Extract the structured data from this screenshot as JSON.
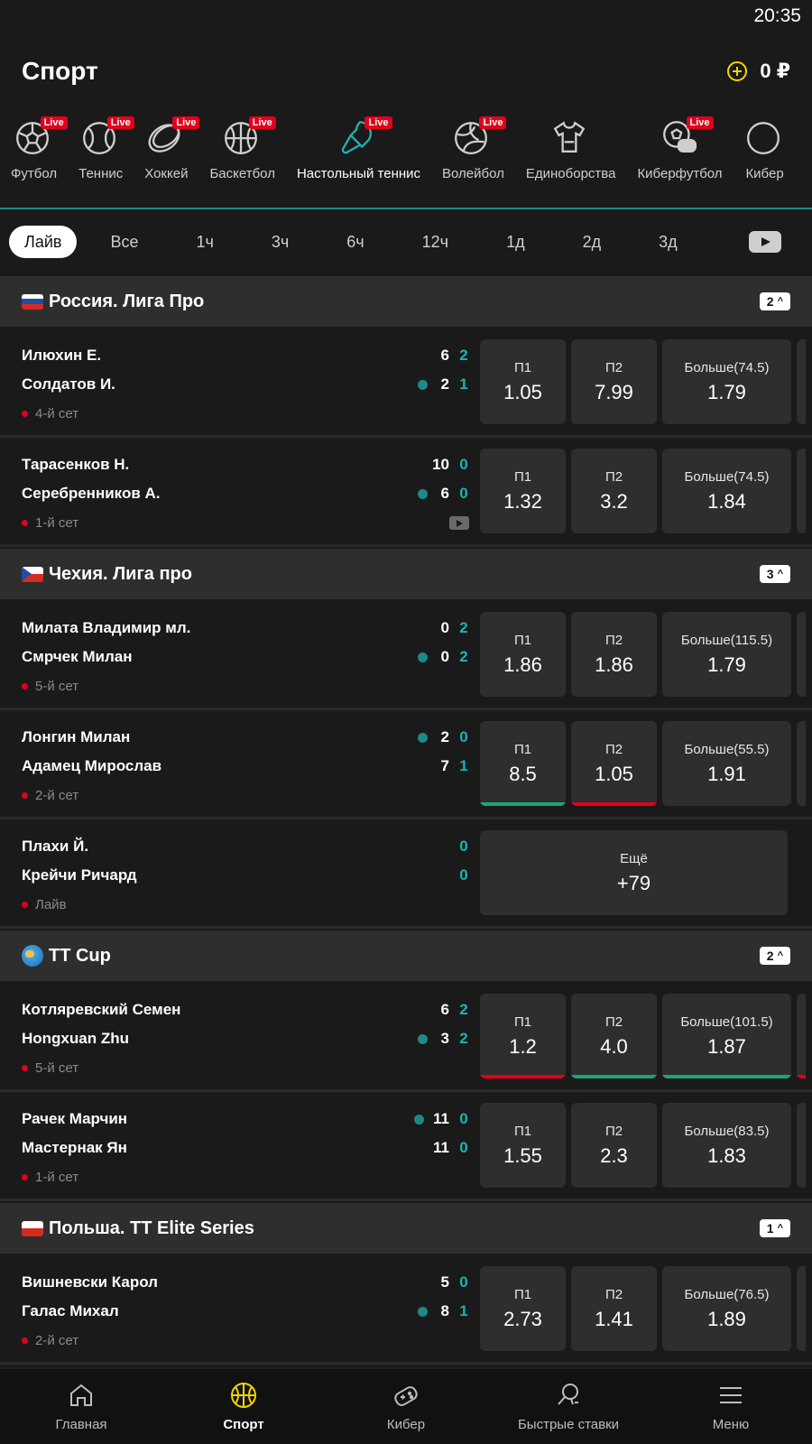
{
  "status_bar": {
    "time": "20:35"
  },
  "header": {
    "title": "Спорт",
    "balance": "0 ₽"
  },
  "sports": [
    {
      "label": "Футбол",
      "live": "Live",
      "icon": "football-icon"
    },
    {
      "label": "Теннис",
      "live": "Live",
      "icon": "tennis-icon"
    },
    {
      "label": "Хоккей",
      "live": "Live",
      "icon": "hockey-icon"
    },
    {
      "label": "Баскетбол",
      "live": "Live",
      "icon": "basketball-icon"
    },
    {
      "label": "Настольный теннис",
      "live": "Live",
      "icon": "table-tennis-icon",
      "active": true
    },
    {
      "label": "Волейбол",
      "live": "Live",
      "icon": "volleyball-icon"
    },
    {
      "label": "Единоборства",
      "live": "",
      "icon": "martial-arts-icon"
    },
    {
      "label": "Киберфутбол",
      "live": "Live",
      "icon": "cyberfootball-icon"
    },
    {
      "label": "Кибер",
      "live": "",
      "icon": "cyber-icon"
    }
  ],
  "time_filters": [
    "Лайв",
    "Все",
    "1ч",
    "3ч",
    "6ч",
    "12ч",
    "1д",
    "2д",
    "3д"
  ],
  "leagues": [
    {
      "name": "Россия. Лига Про",
      "count": "2",
      "flag": "ru",
      "matches": [
        {
          "team1": "Илюхин Е.",
          "team2": "Солдатов И.",
          "t1_score": "6",
          "t1_set": "2",
          "t2_score": "2",
          "t2_set": "1",
          "status": "4-й сет",
          "odds": [
            {
              "label": "П1",
              "value": "1.05"
            },
            {
              "label": "П2",
              "value": "7.99"
            },
            {
              "label": "Больше(74.5)",
              "value": "1.79"
            }
          ]
        },
        {
          "team1": "Тарасенков Н.",
          "team2": "Серебренников А.",
          "t1_score": "10",
          "t1_set": "0",
          "t2_score": "6",
          "t2_set": "0",
          "status": "1-й сет",
          "odds": [
            {
              "label": "П1",
              "value": "1.32"
            },
            {
              "label": "П2",
              "value": "3.2"
            },
            {
              "label": "Больше(74.5)",
              "value": "1.84"
            }
          ]
        }
      ]
    },
    {
      "name": "Чехия. Лига про",
      "count": "3",
      "flag": "cz",
      "matches": [
        {
          "team1": "Милата Владимир мл.",
          "team2": "Смрчек Милан",
          "t1_score": "0",
          "t1_set": "2",
          "t2_score": "0",
          "t2_set": "2",
          "status": "5-й сет",
          "odds": [
            {
              "label": "П1",
              "value": "1.86"
            },
            {
              "label": "П2",
              "value": "1.86"
            },
            {
              "label": "Больше(115.5)",
              "value": "1.79"
            }
          ]
        },
        {
          "team1": "Лонгин Милан",
          "team2": "Адамец Мирослав",
          "t1_score": "2",
          "t1_set": "0",
          "t2_score": "7",
          "t2_set": "1",
          "status": "2-й сет",
          "odds": [
            {
              "label": "П1",
              "value": "8.5"
            },
            {
              "label": "П2",
              "value": "1.05"
            },
            {
              "label": "Больше(55.5)",
              "value": "1.91"
            }
          ]
        },
        {
          "team1": "Плахи Й.",
          "team2": "Крейчи Ричард",
          "t1_set": "0",
          "t2_set": "0",
          "status": "Лайв",
          "more": {
            "label": "Ещё",
            "value": "+79"
          }
        }
      ]
    },
    {
      "name": "TT Cup",
      "count": "2",
      "flag": "globe",
      "matches": [
        {
          "team1": "Котляревский Семен",
          "team2": "Hongxuan Zhu",
          "t1_score": "6",
          "t1_set": "2",
          "t2_score": "3",
          "t2_set": "2",
          "status": "5-й сет",
          "odds": [
            {
              "label": "П1",
              "value": "1.2"
            },
            {
              "label": "П2",
              "value": "4.0"
            },
            {
              "label": "Больше(101.5)",
              "value": "1.87"
            }
          ]
        },
        {
          "team1": "Рачек Марчин",
          "team2": "Мастернак Ян",
          "t1_score": "11",
          "t1_set": "0",
          "t2_score": "11",
          "t2_set": "0",
          "status": "1-й сет",
          "odds": [
            {
              "label": "П1",
              "value": "1.55"
            },
            {
              "label": "П2",
              "value": "2.3"
            },
            {
              "label": "Больше(83.5)",
              "value": "1.83"
            }
          ]
        }
      ]
    },
    {
      "name": "Польша. TT Elite Series",
      "count": "1",
      "flag": "pl",
      "matches": [
        {
          "team1": "Вишневски Карол",
          "team2": "Галас Михал",
          "t1_score": "5",
          "t1_set": "0",
          "t2_score": "8",
          "t2_set": "1",
          "status": "2-й сет",
          "odds": [
            {
              "label": "П1",
              "value": "2.73"
            },
            {
              "label": "П2",
              "value": "1.41"
            },
            {
              "label": "Больше(76.5)",
              "value": "1.89"
            }
          ]
        }
      ]
    }
  ],
  "bottom_nav": [
    {
      "label": "Главная",
      "icon": "home-icon"
    },
    {
      "label": "Спорт",
      "icon": "basketball-icon",
      "active": true
    },
    {
      "label": "Кибер",
      "icon": "gamepad-icon"
    },
    {
      "label": "Быстрые ставки",
      "icon": "fast-bets-icon"
    },
    {
      "label": "Меню",
      "icon": "menu-icon"
    }
  ],
  "colors": {
    "accent": "#1fb3b0",
    "live": "#e3001b",
    "nav_active": "#f5d400",
    "odd_up": "#1ea37a"
  }
}
